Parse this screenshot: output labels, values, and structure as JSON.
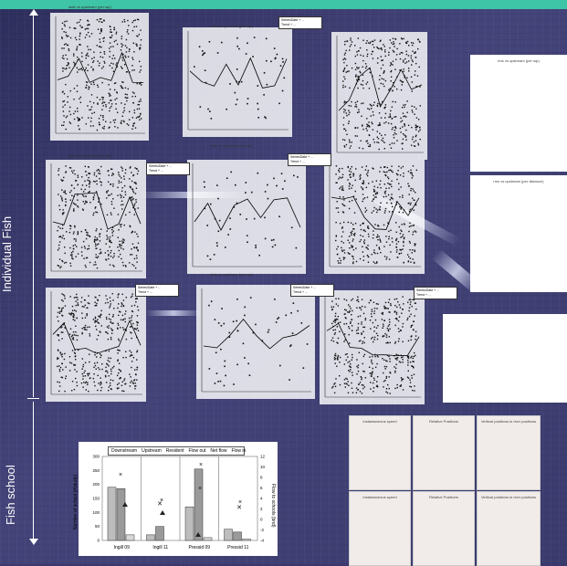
{
  "side_labels": {
    "individual": "Individual Fish",
    "school": "Fish school"
  },
  "scatter_titles": {
    "t1": "date vs upstream (per sqr)",
    "t2": "date vs upstream (per sqr)",
    "t3": "date vs upstream (per sqr)",
    "t4": "date vs upstream (per sqr)",
    "t5": "date vs upstream (per sqr)"
  },
  "legend_small": {
    "a": "Series/Date + ... ",
    "b": "Trend + ... "
  },
  "right_titles": {
    "r1": "rms vs upstream (per sqr)",
    "r2": "rms vs upstream (per distance)"
  },
  "school_chart": {
    "legend": [
      "Downstream",
      "Upstream",
      "Resident",
      "Flow out",
      "Net flow",
      "Flow in"
    ],
    "ylabel_left": "Number of school (#/study)",
    "ylabel_right": "Flow to schools (bnd)",
    "yticks_left": [
      "0",
      "50",
      "100",
      "150",
      "200",
      "250",
      "300"
    ],
    "yticks_right": [
      "-4",
      "-2",
      "0",
      "2",
      "4",
      "6",
      "8",
      "10",
      "12"
    ],
    "categories": [
      "Ingill 09",
      "Ingill 11",
      "Pressid 09",
      "Pressid 11"
    ]
  },
  "pink_titles": [
    "Instantaneous speed",
    "Relative Positions",
    "Vertical positions in river positions",
    "Instantaneous speed",
    "Relative Positions",
    "Vertical positions in river positions"
  ],
  "chart_data": {
    "type": "bar",
    "categories": [
      "Ingill 09",
      "Ingill 11",
      "Pressid 09",
      "Pressid 11"
    ],
    "series": [
      {
        "name": "Downstream",
        "values": [
          190,
          20,
          120,
          40
        ]
      },
      {
        "name": "Upstream",
        "values": [
          185,
          50,
          255,
          30
        ]
      },
      {
        "name": "Resident",
        "values": [
          20,
          0,
          10,
          5
        ]
      }
    ],
    "ylim": [
      0,
      300
    ]
  }
}
